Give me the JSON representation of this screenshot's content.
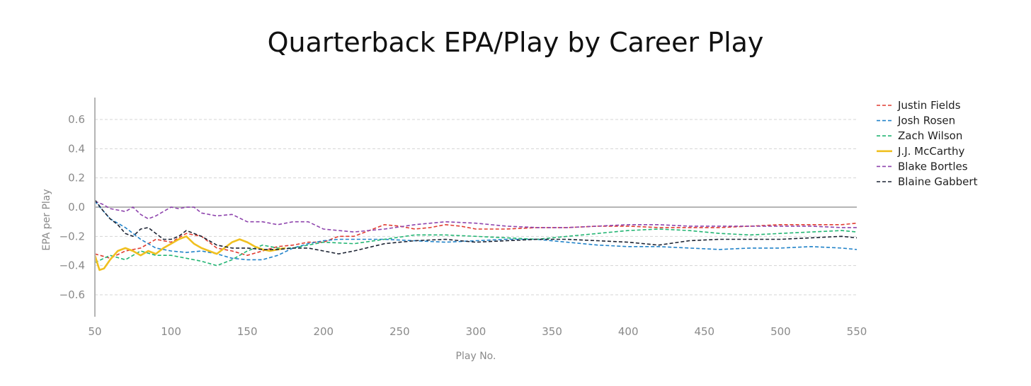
{
  "chart_data": {
    "type": "line",
    "title": "Quarterback EPA/Play by Career Play",
    "xlabel": "Play No.",
    "ylabel": "EPA per Play",
    "xlim": [
      50,
      550
    ],
    "ylim": [
      -0.75,
      0.75
    ],
    "xticks": [
      50,
      100,
      150,
      200,
      250,
      300,
      350,
      400,
      450,
      500,
      550
    ],
    "yticks": [
      0.6,
      0.4,
      0.2,
      0.0,
      -0.2,
      -0.4,
      -0.6
    ],
    "ytick_labels": [
      "0.6",
      "0.4",
      "0.2",
      "0.0",
      "−0.2",
      "−0.4",
      "−0.6"
    ],
    "grid": "horizontal-dashed",
    "legend_position": "right",
    "series": [
      {
        "name": "Justin Fields",
        "color": "#e03c31",
        "style": "dashed",
        "x": [
          50,
          60,
          70,
          80,
          90,
          100,
          110,
          120,
          130,
          140,
          150,
          160,
          170,
          180,
          190,
          200,
          210,
          220,
          230,
          240,
          250,
          260,
          270,
          280,
          290,
          300,
          320,
          340,
          360,
          380,
          400,
          420,
          440,
          460,
          480,
          500,
          520,
          540,
          550
        ],
        "y": [
          -0.32,
          -0.35,
          -0.3,
          -0.28,
          -0.22,
          -0.24,
          -0.18,
          -0.2,
          -0.28,
          -0.3,
          -0.33,
          -0.3,
          -0.27,
          -0.26,
          -0.24,
          -0.24,
          -0.2,
          -0.2,
          -0.16,
          -0.12,
          -0.13,
          -0.15,
          -0.14,
          -0.12,
          -0.13,
          -0.15,
          -0.15,
          -0.14,
          -0.14,
          -0.13,
          -0.13,
          -0.14,
          -0.14,
          -0.14,
          -0.13,
          -0.12,
          -0.12,
          -0.12,
          -0.11
        ]
      },
      {
        "name": "Josh Rosen",
        "color": "#2283c9",
        "style": "dashed",
        "x": [
          50,
          55,
          60,
          70,
          80,
          90,
          100,
          110,
          120,
          130,
          140,
          150,
          160,
          170,
          180,
          190,
          200,
          210,
          220,
          230,
          240,
          260,
          280,
          300,
          320,
          340,
          360,
          380,
          400,
          420,
          440,
          460,
          480,
          500,
          520,
          540,
          550
        ],
        "y": [
          0.04,
          -0.02,
          -0.08,
          -0.14,
          -0.22,
          -0.28,
          -0.3,
          -0.31,
          -0.3,
          -0.32,
          -0.35,
          -0.36,
          -0.36,
          -0.33,
          -0.28,
          -0.25,
          -0.23,
          -0.22,
          -0.22,
          -0.22,
          -0.22,
          -0.23,
          -0.24,
          -0.23,
          -0.22,
          -0.22,
          -0.24,
          -0.26,
          -0.27,
          -0.27,
          -0.28,
          -0.29,
          -0.28,
          -0.28,
          -0.27,
          -0.28,
          -0.29
        ]
      },
      {
        "name": "Zach Wilson",
        "color": "#22b573",
        "style": "dashed",
        "x": [
          50,
          60,
          70,
          80,
          90,
          100,
          110,
          120,
          130,
          140,
          150,
          160,
          170,
          180,
          190,
          200,
          220,
          240,
          260,
          280,
          300,
          320,
          340,
          360,
          380,
          400,
          420,
          440,
          460,
          480,
          500,
          520,
          540,
          550
        ],
        "y": [
          -0.38,
          -0.33,
          -0.36,
          -0.3,
          -0.33,
          -0.33,
          -0.35,
          -0.37,
          -0.4,
          -0.36,
          -0.3,
          -0.26,
          -0.28,
          -0.28,
          -0.26,
          -0.24,
          -0.25,
          -0.22,
          -0.19,
          -0.19,
          -0.2,
          -0.21,
          -0.22,
          -0.2,
          -0.18,
          -0.16,
          -0.15,
          -0.16,
          -0.18,
          -0.19,
          -0.18,
          -0.17,
          -0.16,
          -0.17
        ]
      },
      {
        "name": "J.J. McCarthy",
        "color": "#f0c020",
        "style": "solid",
        "x": [
          50,
          53,
          56,
          60,
          65,
          70,
          75,
          80,
          85,
          90,
          95,
          100,
          105,
          110,
          115,
          120,
          125,
          130,
          135,
          140,
          145,
          150,
          155,
          160,
          165,
          170,
          175
        ],
        "y": [
          -0.33,
          -0.43,
          -0.42,
          -0.36,
          -0.3,
          -0.28,
          -0.3,
          -0.33,
          -0.3,
          -0.32,
          -0.28,
          -0.25,
          -0.22,
          -0.2,
          -0.25,
          -0.28,
          -0.3,
          -0.32,
          -0.28,
          -0.24,
          -0.22,
          -0.24,
          -0.27,
          -0.29,
          -0.3,
          -0.29,
          -0.28
        ]
      },
      {
        "name": "Blake Bortles",
        "color": "#8e44ad",
        "style": "dashed",
        "x": [
          50,
          55,
          60,
          65,
          70,
          75,
          80,
          85,
          90,
          95,
          100,
          105,
          110,
          115,
          120,
          130,
          140,
          150,
          160,
          170,
          180,
          190,
          200,
          210,
          220,
          240,
          260,
          280,
          300,
          320,
          340,
          360,
          380,
          400,
          420,
          440,
          460,
          480,
          500,
          520,
          540,
          550
        ],
        "y": [
          0.04,
          0.02,
          -0.01,
          -0.02,
          -0.03,
          0.0,
          -0.05,
          -0.08,
          -0.06,
          -0.03,
          0.0,
          -0.01,
          0.0,
          0.0,
          -0.04,
          -0.06,
          -0.05,
          -0.1,
          -0.1,
          -0.12,
          -0.1,
          -0.1,
          -0.15,
          -0.16,
          -0.17,
          -0.15,
          -0.12,
          -0.1,
          -0.11,
          -0.13,
          -0.14,
          -0.14,
          -0.13,
          -0.12,
          -0.12,
          -0.13,
          -0.13,
          -0.13,
          -0.13,
          -0.13,
          -0.14,
          -0.14
        ]
      },
      {
        "name": "Blaine Gabbert",
        "color": "#1c2333",
        "style": "dashed",
        "x": [
          50,
          55,
          60,
          65,
          70,
          75,
          80,
          85,
          90,
          95,
          100,
          105,
          110,
          120,
          130,
          140,
          150,
          160,
          170,
          180,
          190,
          200,
          210,
          220,
          240,
          260,
          280,
          300,
          320,
          340,
          360,
          380,
          400,
          420,
          440,
          460,
          480,
          500,
          520,
          540,
          550
        ],
        "y": [
          0.05,
          -0.02,
          -0.08,
          -0.12,
          -0.18,
          -0.2,
          -0.15,
          -0.14,
          -0.18,
          -0.22,
          -0.22,
          -0.2,
          -0.16,
          -0.2,
          -0.26,
          -0.28,
          -0.28,
          -0.29,
          -0.29,
          -0.28,
          -0.28,
          -0.3,
          -0.32,
          -0.3,
          -0.25,
          -0.23,
          -0.22,
          -0.24,
          -0.23,
          -0.22,
          -0.22,
          -0.23,
          -0.24,
          -0.26,
          -0.23,
          -0.22,
          -0.22,
          -0.22,
          -0.21,
          -0.2,
          -0.21
        ]
      }
    ]
  }
}
